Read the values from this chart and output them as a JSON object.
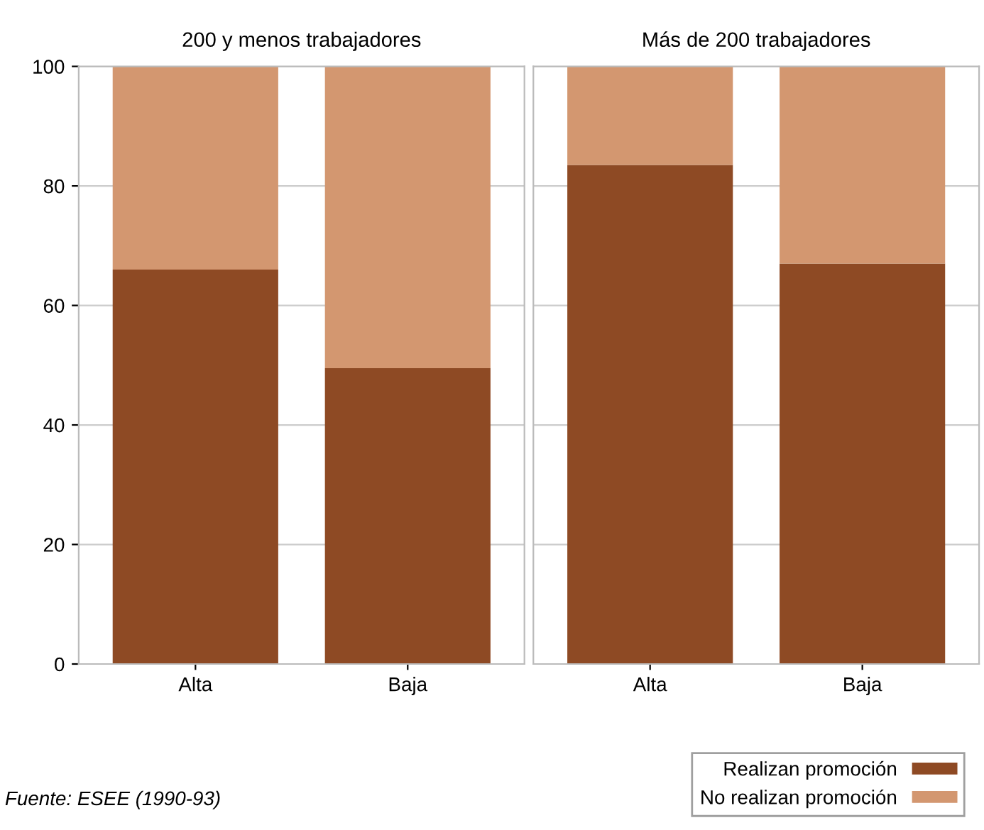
{
  "chart_data": [
    {
      "type": "bar",
      "title": "200 y menos trabajadores",
      "categories": [
        "Alta",
        "Baja"
      ],
      "stacked": true,
      "ylim": [
        0,
        100
      ],
      "yticks": [
        0,
        20,
        40,
        60,
        80,
        100
      ],
      "grid": "y",
      "legend": "bottom right",
      "series": [
        {
          "name": "Realizan promoción",
          "color": "#8e4a24",
          "values": [
            66,
            49.5
          ]
        },
        {
          "name": "No realizan promoción",
          "color": "#d39770",
          "values": [
            34,
            50.5
          ]
        }
      ],
      "annotations": [
        "Fuente: ESEE (1990-93)"
      ]
    },
    {
      "type": "bar",
      "title": "Más de 200 trabajadores",
      "categories": [
        "Alta",
        "Baja"
      ],
      "stacked": true,
      "ylim": [
        0,
        100
      ],
      "yticks": [
        0,
        20,
        40,
        60,
        80,
        100
      ],
      "grid": "y",
      "tick_labels": "x",
      "series": [
        {
          "color": "#8e4a24",
          "values": [
            83.5,
            67
          ]
        },
        {
          "color": "#d39770",
          "values": [
            16.5,
            33
          ]
        }
      ]
    }
  ]
}
